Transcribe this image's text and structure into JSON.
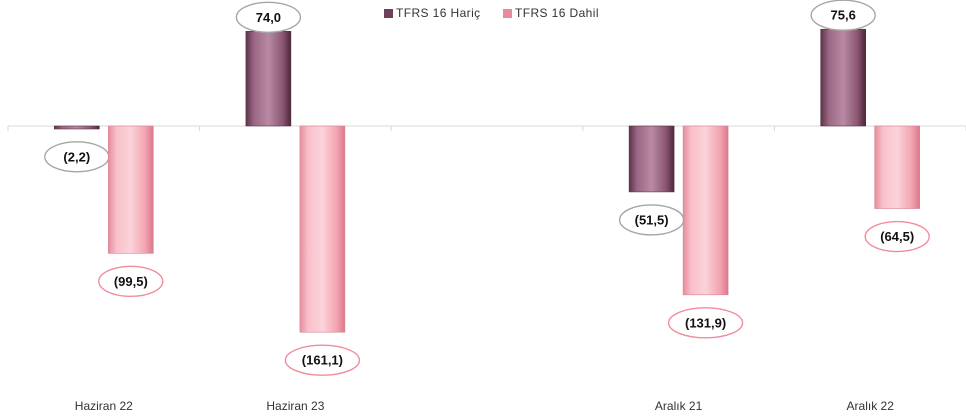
{
  "chart_data": {
    "type": "bar",
    "categories": [
      "Haziran 22",
      "Haziran 23",
      "",
      "Aralık 21",
      "Aralık 22"
    ],
    "series": [
      {
        "name": "TFRS 16 Hariç",
        "color": "#8e5a76",
        "values": [
          -2.2,
          74.0,
          null,
          -51.5,
          75.6
        ],
        "labels": [
          "(2,2)",
          "74,0",
          "",
          "(51,5)",
          "75,6"
        ],
        "label_border_color": "#a6a6a6"
      },
      {
        "name": "TFRS 16 Dahil",
        "color": "#f4a6b3",
        "values": [
          -99.5,
          -161.1,
          null,
          -131.9,
          -64.5
        ],
        "labels": [
          "(99,5)",
          "(161,1)",
          "",
          "(131,9)",
          "(64,5)"
        ],
        "label_border_color": "#f08c9c"
      }
    ],
    "ylim": [
      -200,
      100
    ],
    "grid": false,
    "legend_position": "top-center"
  }
}
